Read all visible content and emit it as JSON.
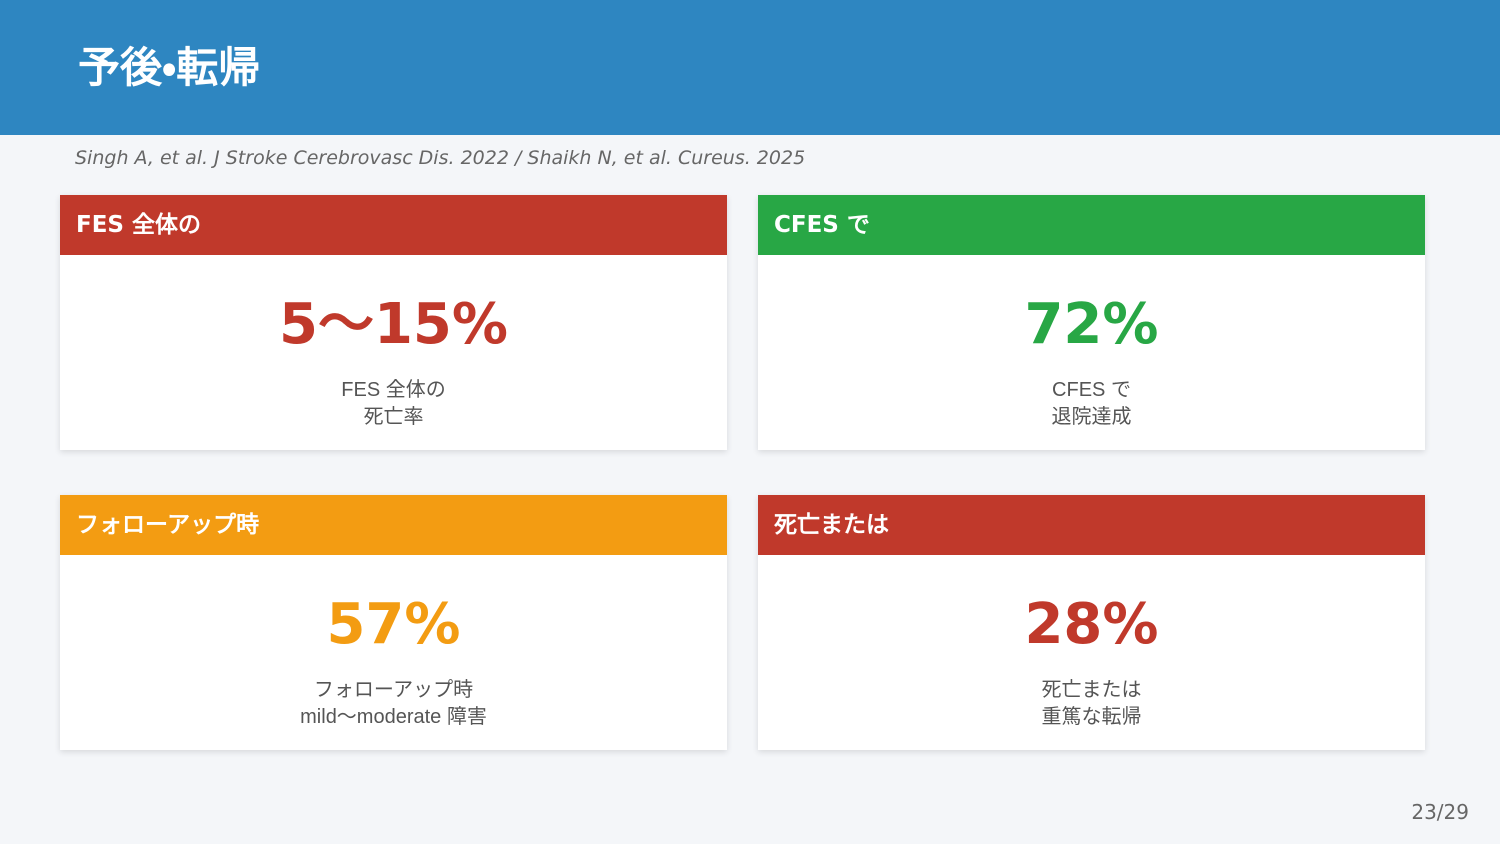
{
  "header": {
    "title": "予後・転帰"
  },
  "citation": "Singh A, et al. J Stroke Cerebrovasc Dis. 2022 / Shaikh N, et al. Cureus. 2025",
  "cards": [
    {
      "header": "FES 全体の",
      "stat": "5〜15%",
      "caption": [
        "FES 全体の",
        "死亡率"
      ]
    },
    {
      "header": "CFES で",
      "stat": "72%",
      "caption": [
        "CFES で",
        "退院達成"
      ]
    },
    {
      "header": "フォローアップ時",
      "stat": "57%",
      "caption": [
        "フォローアップ時",
        "mild〜moderate 障害"
      ]
    },
    {
      "header": "死亡または",
      "stat": "28%",
      "caption": [
        "死亡または",
        "重篤な転帰"
      ]
    }
  ],
  "page_number": "23/29"
}
